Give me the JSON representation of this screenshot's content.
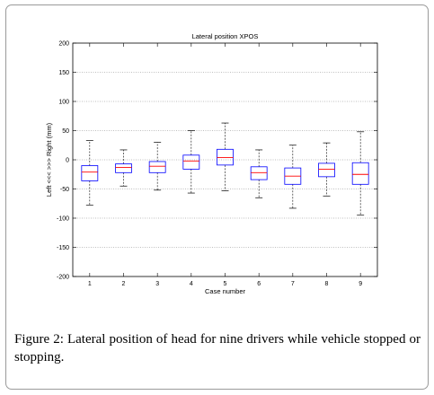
{
  "figure": {
    "caption_prefix": "Figure 2:",
    "caption_text": "Lateral position of head for nine drivers while vehicle stopped or stopping."
  },
  "chart_data": {
    "type": "boxplot",
    "title": "Lateral position XPOS",
    "xlabel": "Case number",
    "ylabel": "Left <<< >>> Right (mm)",
    "ylim": [
      -200,
      200
    ],
    "yticks": [
      -200,
      -150,
      -100,
      -50,
      0,
      50,
      100,
      150,
      200
    ],
    "grid": "horizontal dotted",
    "categories": [
      "1",
      "2",
      "3",
      "4",
      "5",
      "6",
      "7",
      "8",
      "9"
    ],
    "boxes": [
      {
        "case": "1",
        "whisker_low": -78,
        "q1": -36,
        "median": -21,
        "q3": -10,
        "whisker_high": 33
      },
      {
        "case": "2",
        "whisker_low": -45,
        "q1": -22,
        "median": -13,
        "q3": -7,
        "whisker_high": 17
      },
      {
        "case": "3",
        "whisker_low": -52,
        "q1": -22,
        "median": -11,
        "q3": -3,
        "whisker_high": 30
      },
      {
        "case": "4",
        "whisker_low": -57,
        "q1": -16,
        "median": -2,
        "q3": 8,
        "whisker_high": 50
      },
      {
        "case": "5",
        "whisker_low": -53,
        "q1": -9,
        "median": 4,
        "q3": 18,
        "whisker_high": 63
      },
      {
        "case": "6",
        "whisker_low": -65,
        "q1": -34,
        "median": -22,
        "q3": -12,
        "whisker_high": 17
      },
      {
        "case": "7",
        "whisker_low": -83,
        "q1": -42,
        "median": -28,
        "q3": -14,
        "whisker_high": 25
      },
      {
        "case": "8",
        "whisker_low": -62,
        "q1": -29,
        "median": -16,
        "q3": -6,
        "whisker_high": 29
      },
      {
        "case": "9",
        "whisker_low": -95,
        "q1": -42,
        "median": -25,
        "q3": -5,
        "whisker_high": 48
      }
    ],
    "colors": {
      "box": "#0000ff",
      "median": "#ff0000",
      "whisker": "#000000",
      "grid": "#7f7f7f"
    }
  }
}
